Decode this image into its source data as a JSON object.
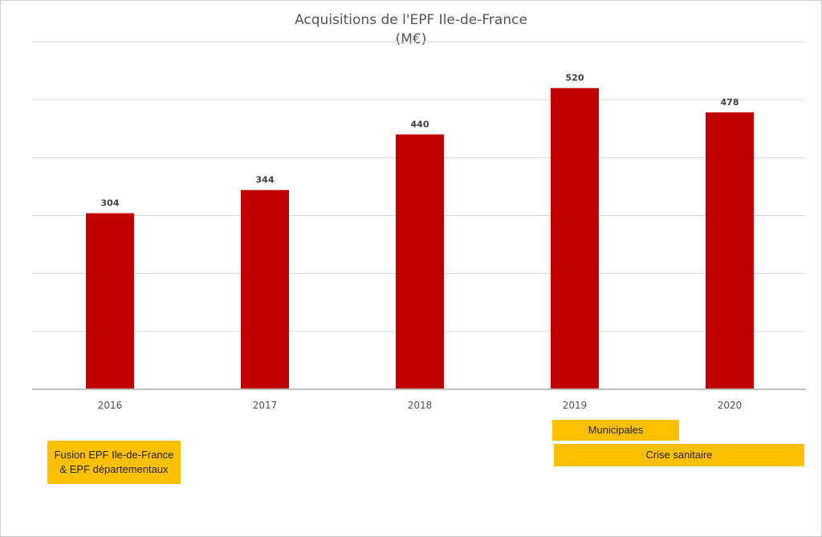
{
  "chart_data": {
    "type": "bar",
    "title": "Acquisitions de l'EPF Ile-de-France",
    "subtitle": "(M€)",
    "categories": [
      "2016",
      "2017",
      "2018",
      "2019",
      "2020"
    ],
    "values": [
      304,
      344,
      440,
      520,
      478
    ],
    "xlabel": "",
    "ylabel": "",
    "ylim": [
      0,
      600
    ],
    "grid": true,
    "legend": "none",
    "bar_color": "#c00000",
    "data_labels": [
      "304",
      "344",
      "440",
      "520",
      "478"
    ]
  },
  "annotations": {
    "fusion": "Fusion EPF Ile-de-France\n& EPF départementaux",
    "municipales": "Municipales",
    "crise": "Crise sanitaire",
    "color": "#ffc000"
  }
}
